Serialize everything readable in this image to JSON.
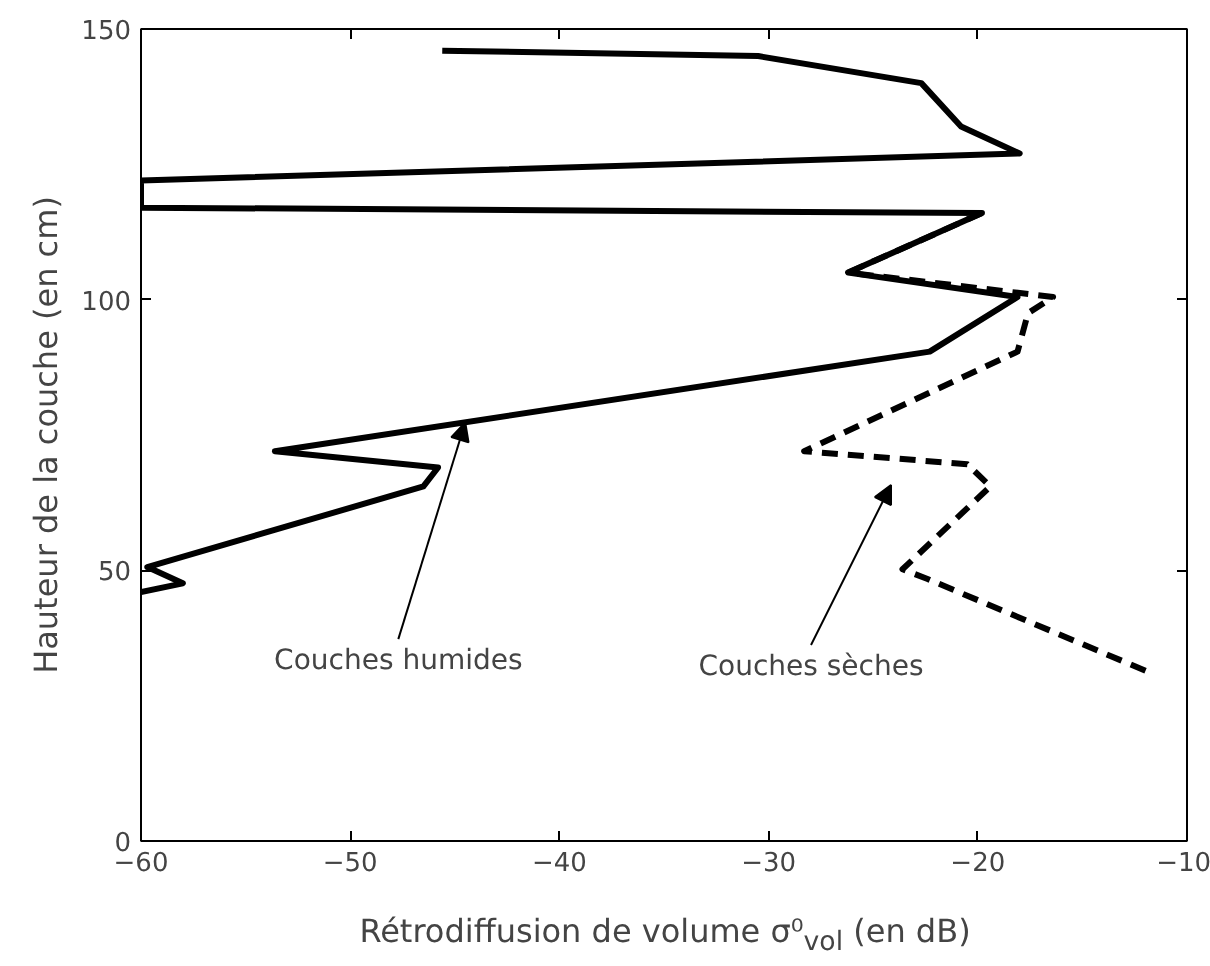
{
  "chart_data": {
    "type": "line",
    "xlabel": "Rétrodiffusion de volume σ⁰$_{vol}$ (en dB)",
    "ylabel": "Hauteur de la couche (en cm)",
    "xlim": [
      -60,
      -10
    ],
    "ylim": [
      0,
      150
    ],
    "xticks": [
      -60,
      -50,
      -40,
      -30,
      -20,
      -10
    ],
    "yticks": [
      0,
      50,
      100,
      150
    ],
    "series": [
      {
        "color": "#000000",
        "line_style": "solid",
        "x": [
          -45.6,
          -30.5,
          -22.7,
          -20.8,
          -18.0,
          -60,
          -60,
          -19.8,
          -26.2,
          -18.1,
          -22.3,
          -53.6,
          -45.8,
          -46.5,
          -59.7,
          -58.0,
          -60
        ],
        "values": [
          146,
          145,
          140,
          132,
          127,
          122,
          117,
          116,
          105,
          100.5,
          90.4,
          72,
          69,
          65.5,
          50.6,
          47.6,
          46
        ]
      },
      {
        "color": "#000000",
        "line_style": "dashed",
        "x": [
          -19.8,
          -26.2,
          -16.4,
          -17.6,
          -18.1,
          -28.3,
          -20.5,
          -19.4,
          -23.6,
          -22.4,
          -11.7
        ],
        "values": [
          116,
          105,
          100.5,
          97.5,
          90.4,
          72,
          69.6,
          65.5,
          50.2,
          48.4,
          31
        ]
      }
    ],
    "annotations": [
      {
        "text": "Couches humides",
        "x": -44.5,
        "y": 77.3
      },
      "Couches sèches"
    ]
  }
}
